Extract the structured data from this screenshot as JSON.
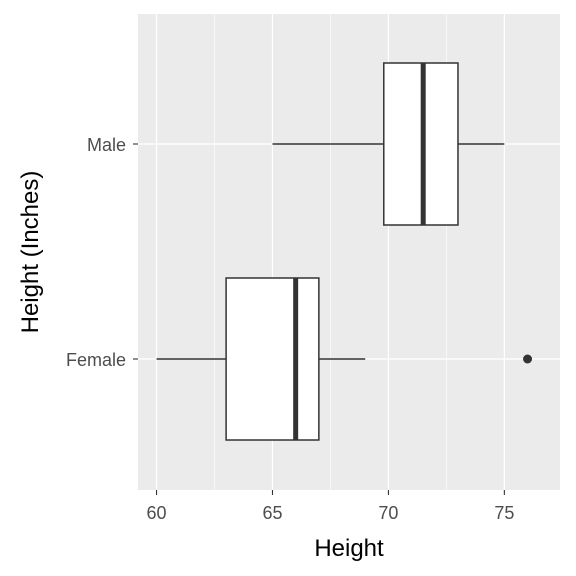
{
  "chart_data": {
    "type": "boxplot",
    "orientation": "horizontal",
    "xlabel": "Height",
    "ylabel": "Height (Inches)",
    "xlim": [
      59.2,
      77.4
    ],
    "xticks": [
      60,
      65,
      70,
      75
    ],
    "xtick_labels": [
      "60",
      "65",
      "70",
      "75"
    ],
    "categories": [
      "Female",
      "Male"
    ],
    "boxes": [
      {
        "category": "Female",
        "whisker_low": 60,
        "q1": 63,
        "median": 66,
        "q3": 67,
        "whisker_high": 69,
        "outliers": [
          76
        ]
      },
      {
        "category": "Male",
        "whisker_low": 65,
        "q1": 69.8,
        "median": 71.5,
        "q3": 73,
        "whisker_high": 75,
        "outliers": []
      }
    ],
    "grid": true,
    "legend": "none",
    "colors": {
      "panel": "#ebebeb",
      "grid": "#ffffff",
      "box_fill": "#ffffff",
      "box_line": "#333333",
      "tick_text": "#4d4d4d"
    }
  }
}
